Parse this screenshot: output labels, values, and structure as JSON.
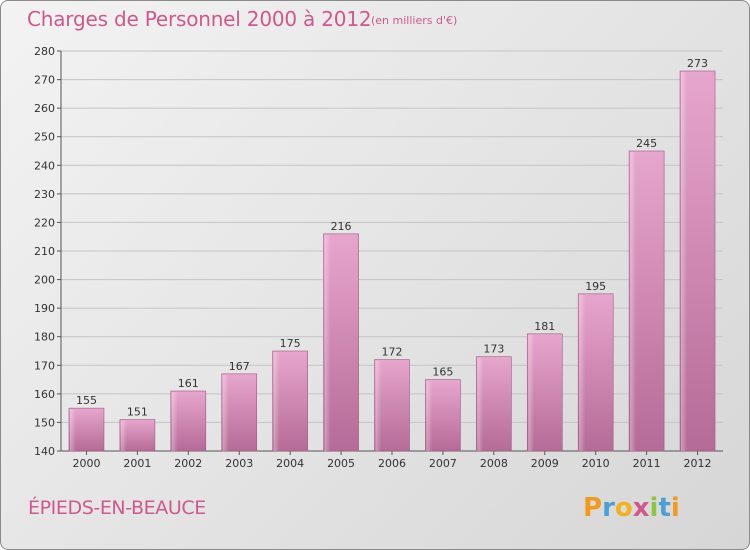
{
  "header": {
    "title": "Charges de Personnel 2000 à 2012",
    "subtitle": "(en milliers d'€)"
  },
  "footer": {
    "commune": "ÉPIEDS-EN-BEAUCE",
    "logo_text": "Proxiti"
  },
  "colors": {
    "title": "#d0588f",
    "bar_light": "#e7a6cd",
    "bar_dark": "#b56b97"
  },
  "chart_data": {
    "type": "bar",
    "title": "Charges de Personnel 2000 à 2012",
    "subtitle": "(en milliers d'€)",
    "categories": [
      "2000",
      "2001",
      "2002",
      "2003",
      "2004",
      "2005",
      "2006",
      "2007",
      "2008",
      "2009",
      "2010",
      "2011",
      "2012"
    ],
    "values": [
      155,
      151,
      161,
      167,
      175,
      216,
      172,
      165,
      173,
      181,
      195,
      245,
      273
    ],
    "ylim": [
      140,
      280
    ],
    "yticks": [
      140,
      150,
      160,
      170,
      180,
      190,
      200,
      210,
      220,
      230,
      240,
      250,
      260,
      270,
      280
    ],
    "grid": true,
    "data_labels": true
  }
}
